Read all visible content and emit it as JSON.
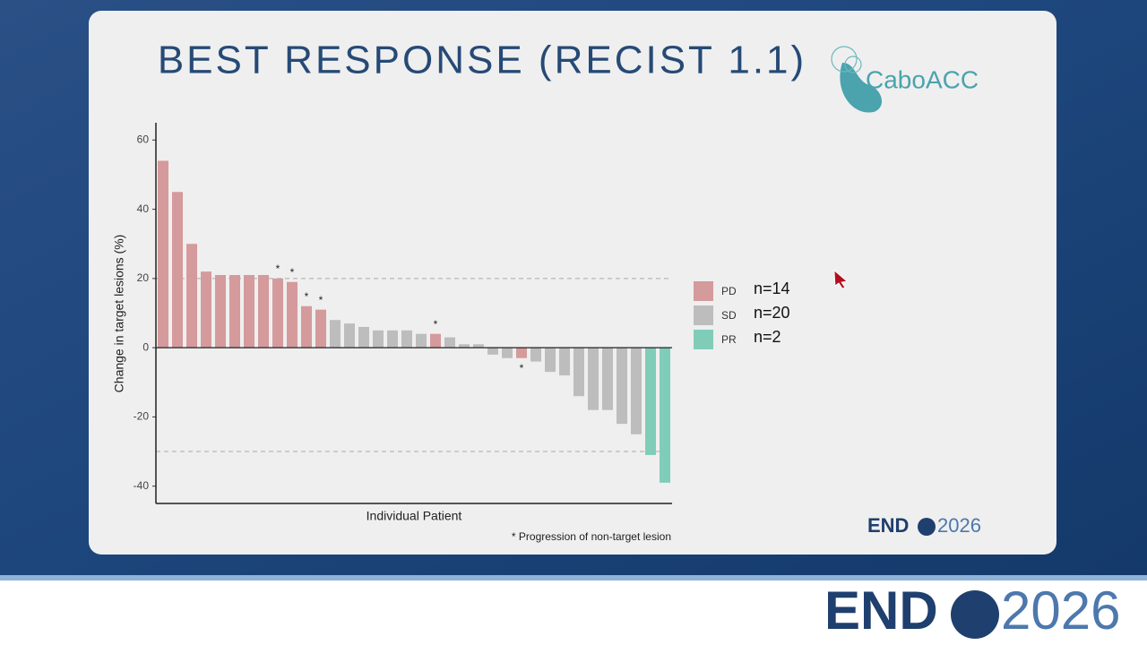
{
  "chart_data": {
    "type": "bar",
    "title": "BEST RESPONSE (RECIST 1.1)",
    "y_label": "Change in target lesions (%)",
    "x_label": "Individual Patient",
    "footnote": "* Progression of non-target lesion",
    "categories": [
      null,
      null,
      null,
      null,
      null,
      null,
      null,
      null,
      null,
      null,
      null,
      null,
      null,
      null,
      null,
      null,
      null,
      null,
      null,
      null,
      null,
      null,
      null,
      null,
      null,
      null,
      null,
      null,
      null,
      null,
      null,
      null,
      null,
      null,
      null,
      null
    ],
    "series": [
      {
        "name": "PD",
        "color": "#d59a9c",
        "count_label": "n=14",
        "values": [
          54,
          45,
          30,
          22,
          21,
          21,
          21,
          21,
          20,
          19,
          12,
          11,
          null,
          null,
          null,
          null,
          null,
          null,
          null,
          4,
          null,
          null,
          null,
          null,
          null,
          -3,
          null,
          null,
          null,
          null,
          null,
          null,
          null,
          null,
          null,
          null
        ]
      },
      {
        "name": "SD",
        "color": "#bdbdbd",
        "count_label": "n=20",
        "values": [
          null,
          null,
          null,
          null,
          null,
          null,
          null,
          null,
          null,
          null,
          null,
          null,
          8,
          7,
          6,
          5,
          5,
          5,
          4,
          null,
          3,
          1,
          1,
          -2,
          -3,
          null,
          -4,
          -7,
          -8,
          -14,
          -18,
          -18,
          -22,
          -25,
          null,
          null
        ]
      },
      {
        "name": "PR",
        "color": "#7fcdb9",
        "count_label": "n=2",
        "values": [
          null,
          null,
          null,
          null,
          null,
          null,
          null,
          null,
          null,
          null,
          null,
          null,
          null,
          null,
          null,
          null,
          null,
          null,
          null,
          null,
          null,
          null,
          null,
          null,
          null,
          null,
          null,
          null,
          null,
          null,
          null,
          null,
          null,
          null,
          -31,
          -39
        ]
      }
    ],
    "flags": [
      null,
      null,
      null,
      null,
      null,
      null,
      null,
      null,
      "*",
      "*",
      "*",
      "*",
      null,
      null,
      null,
      null,
      null,
      null,
      null,
      "*",
      null,
      null,
      null,
      null,
      null,
      "*",
      null,
      null,
      null,
      null,
      null,
      null,
      null,
      null,
      null,
      null
    ],
    "reference_lines": [
      20,
      -30
    ],
    "ylim": [
      -45,
      65
    ],
    "yticks": [
      -40,
      -20,
      0,
      20,
      40,
      60
    ]
  },
  "logos": {
    "study": "CaboACC",
    "endo_word": "END",
    "endo_year": "2026"
  }
}
